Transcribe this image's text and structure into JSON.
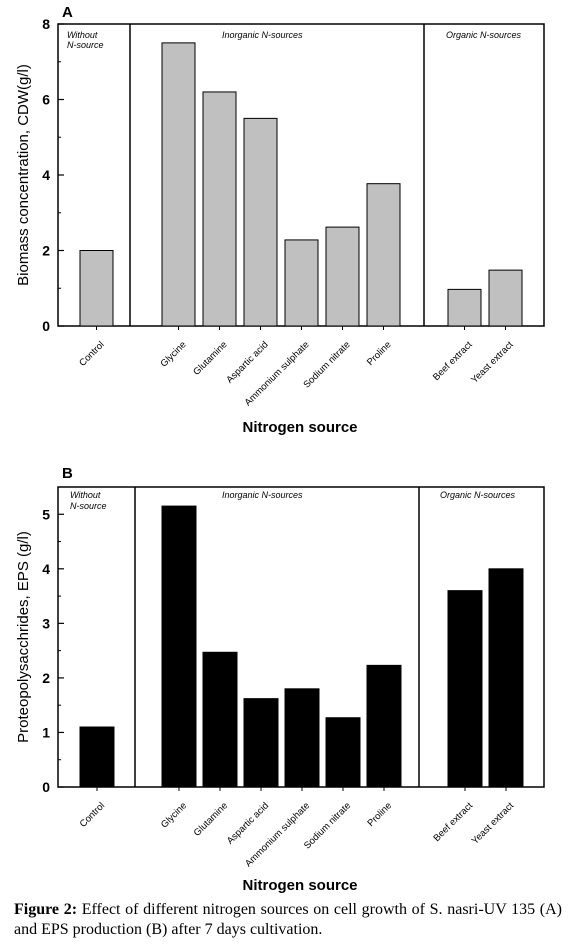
{
  "figure": {
    "caption_label": "Figure 2:",
    "caption_text": "Effect of different nitrogen sources on cell growth of S. nasri-UV 135 (A) and EPS production (B) after 7 days cultivation."
  },
  "chart_data": [
    {
      "type": "bar",
      "panel_label": "A",
      "categories": [
        "Control",
        "Glycine",
        "Glutamine",
        "Aspartic acid",
        "Ammonium sulphate",
        "Sodium nitrate",
        "Proline",
        "Beef extract",
        "Yeast extract"
      ],
      "values": [
        2.0,
        7.5,
        6.2,
        5.5,
        2.28,
        2.62,
        3.77,
        0.97,
        1.48
      ],
      "ylabel": "Biomass concentration, CDW(g/l)",
      "xlabel": "Nitrogen source",
      "ylim": [
        0,
        8
      ],
      "yticks": [
        0,
        2,
        4,
        6,
        8
      ],
      "bar_color": "#c0c0c0",
      "groups": [
        {
          "label_line1": "Without",
          "label_line2": "N-source"
        },
        {
          "label_line1": "Inorganic N-sources",
          "label_line2": ""
        },
        {
          "label_line1": "Organic N-sources",
          "label_line2": ""
        }
      ]
    },
    {
      "type": "bar",
      "panel_label": "B",
      "categories": [
        "Control",
        "Glycine",
        "Glutamine",
        "Aspartic acid",
        "Ammonium sulphate",
        "Sodium nitrate",
        "Proline",
        "Beef extract",
        "Yeast extract"
      ],
      "values": [
        1.1,
        5.15,
        2.47,
        1.62,
        1.8,
        1.27,
        2.23,
        3.6,
        4.0
      ],
      "ylabel": "Proteopolysacchrides, EPS (g/l)",
      "xlabel": "Nitrogen source",
      "ylim": [
        0,
        5.5
      ],
      "yticks": [
        0,
        1,
        2,
        3,
        4,
        5
      ],
      "bar_color": "#000000",
      "groups": [
        {
          "label_line1": "Without",
          "label_line2": "N-source"
        },
        {
          "label_line1": "Inorganic N-sources",
          "label_line2": ""
        },
        {
          "label_line1": "Organic N-sources",
          "label_line2": ""
        }
      ]
    }
  ]
}
